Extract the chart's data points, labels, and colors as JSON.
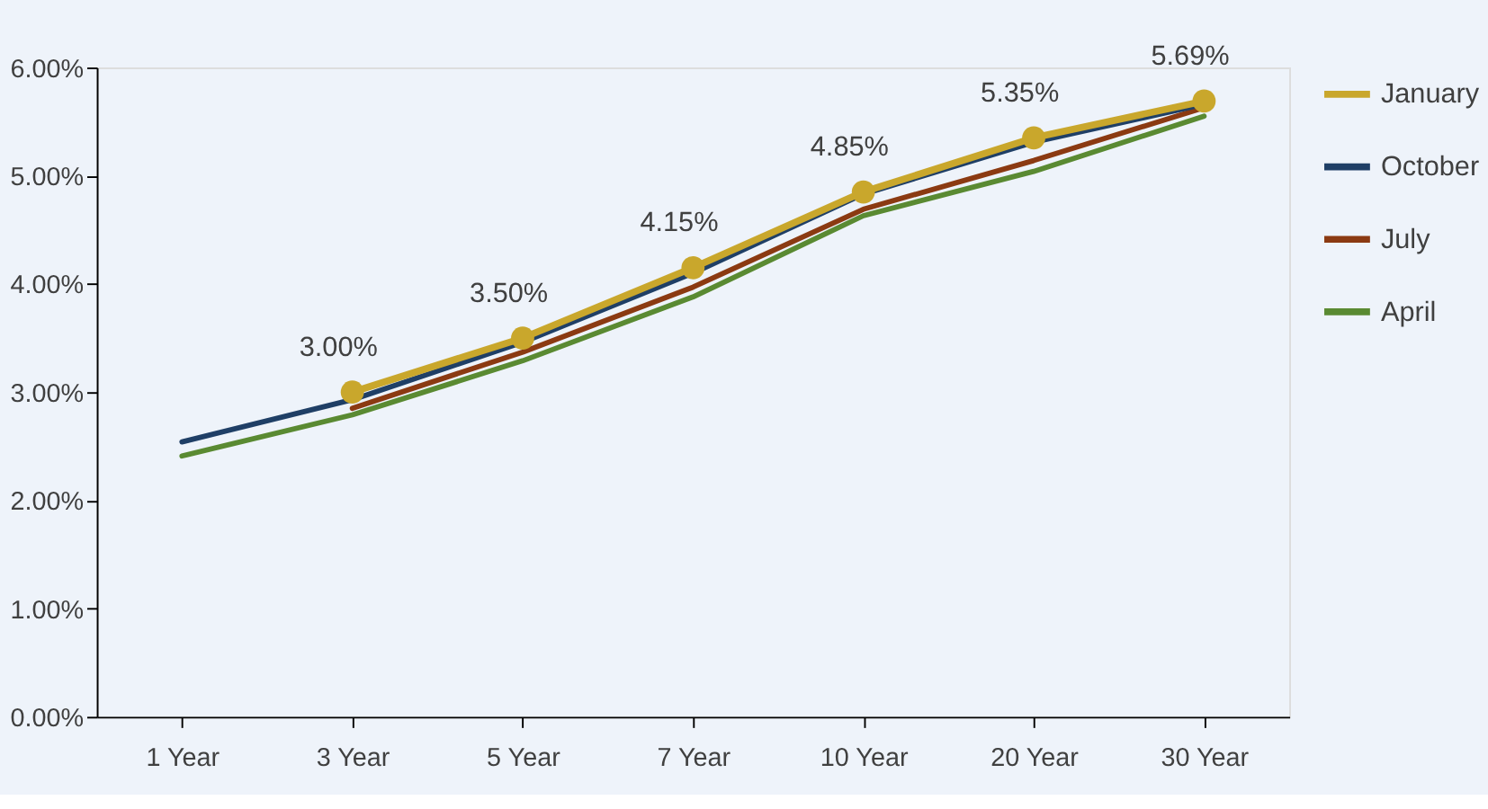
{
  "chart_data": {
    "type": "line",
    "categories": [
      "1 Year",
      "3 Year",
      "5 Year",
      "7 Year",
      "10 Year",
      "20 Year",
      "30 Year"
    ],
    "series": [
      {
        "name": "January",
        "color": "#c9a72c",
        "marker": "circle",
        "values": [
          null,
          3.0,
          3.5,
          4.15,
          4.85,
          5.35,
          5.69
        ],
        "value_labels": [
          null,
          "3.00%",
          "3.50%",
          "4.15%",
          "4.85%",
          "5.35%",
          "5.69%"
        ]
      },
      {
        "name": "October",
        "color": "#1f3f66",
        "marker": "none",
        "values": [
          2.54,
          2.93,
          3.46,
          4.1,
          4.83,
          5.31,
          5.66
        ]
      },
      {
        "name": "July",
        "color": "#8b3a12",
        "marker": "none",
        "values": [
          null,
          2.85,
          3.37,
          3.97,
          4.69,
          5.14,
          5.63
        ]
      },
      {
        "name": "April",
        "color": "#5a8a32",
        "marker": "none",
        "values": [
          2.41,
          2.79,
          3.29,
          3.88,
          4.63,
          5.04,
          5.55
        ]
      }
    ],
    "ylim": [
      0,
      6
    ],
    "yticks": [
      {
        "value": 0,
        "label": "0.00%"
      },
      {
        "value": 1,
        "label": "1.00%"
      },
      {
        "value": 2,
        "label": "2.00%"
      },
      {
        "value": 3,
        "label": "3.00%"
      },
      {
        "value": 4,
        "label": "4.00%"
      },
      {
        "value": 5,
        "label": "5.00%"
      },
      {
        "value": 6,
        "label": "6.00%"
      }
    ],
    "grid": false,
    "legend": "right",
    "line_style": "solid"
  }
}
